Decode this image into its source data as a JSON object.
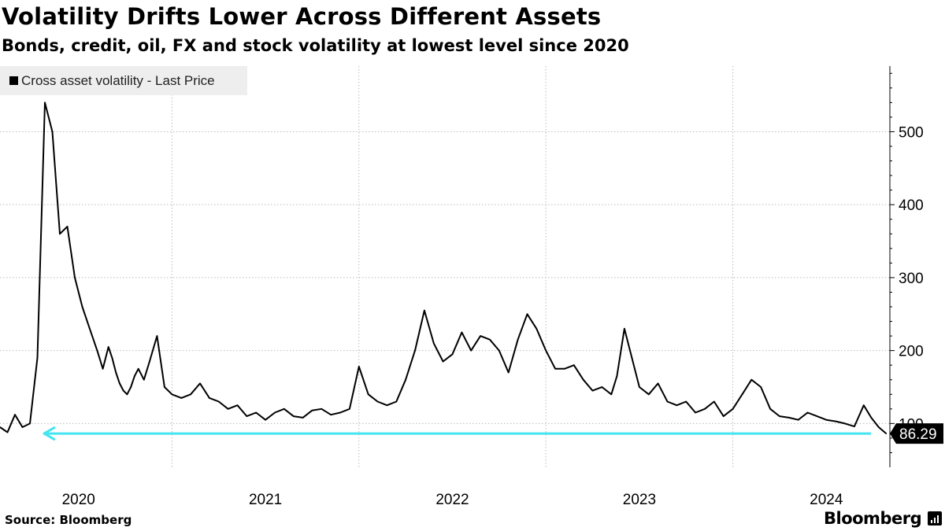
{
  "header": {
    "title": "Volatility Drifts Lower Across Different Assets",
    "subtitle": "Bonds, credit, oil, FX and stock volatility at lowest level since 2020"
  },
  "legend": {
    "label": "Cross asset volatility - Last Price"
  },
  "footer": {
    "source": "Source: Bloomberg",
    "brand": "Bloomberg"
  },
  "colors": {
    "line": "#000000",
    "grid": "#bbbbbb",
    "reference_line": "#44e4f0",
    "legend_bg": "#eeeeee"
  },
  "chart_data": {
    "type": "line",
    "title": "Volatility Drifts Lower Across Different Assets",
    "subtitle": "Bonds, credit, oil, FX and stock volatility at lowest level since 2020",
    "series": [
      {
        "name": "Cross asset volatility - Last Price",
        "x": [
          2019.58,
          2019.62,
          2019.66,
          2019.7,
          2019.74,
          2019.78,
          2019.82,
          2019.86,
          2019.9,
          2019.94,
          2019.98,
          2020.02,
          2020.06,
          2020.1,
          2020.13,
          2020.16,
          2020.18,
          2020.2,
          2020.22,
          2020.24,
          2020.26,
          2020.28,
          2020.3,
          2020.32,
          2020.35,
          2020.38,
          2020.42,
          2020.46,
          2020.5,
          2020.55,
          2020.6,
          2020.65,
          2020.7,
          2020.75,
          2020.8,
          2020.85,
          2020.9,
          2020.95,
          2021.0,
          2021.05,
          2021.1,
          2021.15,
          2021.2,
          2021.25,
          2021.3,
          2021.35,
          2021.4,
          2021.45,
          2021.5,
          2021.55,
          2021.6,
          2021.65,
          2021.7,
          2021.75,
          2021.8,
          2021.85,
          2021.9,
          2021.95,
          2022.0,
          2022.05,
          2022.1,
          2022.15,
          2022.2,
          2022.25,
          2022.3,
          2022.35,
          2022.4,
          2022.45,
          2022.5,
          2022.55,
          2022.6,
          2022.65,
          2022.7,
          2022.75,
          2022.8,
          2022.85,
          2022.88,
          2022.92,
          2022.96,
          2023.0,
          2023.05,
          2023.1,
          2023.15,
          2023.2,
          2023.25,
          2023.3,
          2023.35,
          2023.4,
          2023.45,
          2023.5,
          2023.55,
          2023.6,
          2023.65,
          2023.7,
          2023.75,
          2023.8,
          2023.85,
          2023.9,
          2023.95,
          2024.0,
          2024.05,
          2024.1,
          2024.15,
          2024.2,
          2024.24,
          2024.28,
          2024.32
        ],
        "values": [
          95,
          88,
          112,
          95,
          100,
          190,
          540,
          500,
          360,
          370,
          300,
          260,
          230,
          200,
          175,
          205,
          190,
          170,
          155,
          145,
          140,
          150,
          165,
          175,
          160,
          185,
          220,
          150,
          140,
          135,
          140,
          155,
          135,
          130,
          120,
          125,
          110,
          115,
          105,
          115,
          120,
          110,
          108,
          118,
          120,
          112,
          115,
          120,
          178,
          140,
          130,
          125,
          130,
          160,
          200,
          255,
          210,
          185,
          195,
          225,
          200,
          220,
          215,
          200,
          170,
          215,
          250,
          230,
          200,
          175,
          175,
          180,
          160,
          145,
          150,
          140,
          165,
          230,
          190,
          150,
          140,
          155,
          130,
          125,
          130,
          115,
          120,
          130,
          110,
          120,
          140,
          160,
          150,
          120,
          110,
          108,
          105,
          115,
          110,
          105,
          103,
          100,
          96,
          125,
          108,
          95,
          86.29
        ]
      }
    ],
    "last_value": 86.29,
    "last_value_label": "86.29",
    "reference_line_value": 86.29,
    "y_ticks": [
      100,
      200,
      300,
      400,
      500
    ],
    "y_tick_labels": [
      "100",
      "200",
      "300",
      "400",
      "500"
    ],
    "x_ticks": [
      2020,
      2021,
      2022,
      2023,
      2024
    ],
    "x_tick_labels": [
      "2020",
      "2021",
      "2022",
      "2023",
      "2024"
    ],
    "xlim": [
      2019.58,
      2024.34
    ],
    "ylim": [
      40,
      590
    ],
    "grid": true,
    "y_axis_position": "right",
    "legend_position": "top-left"
  }
}
